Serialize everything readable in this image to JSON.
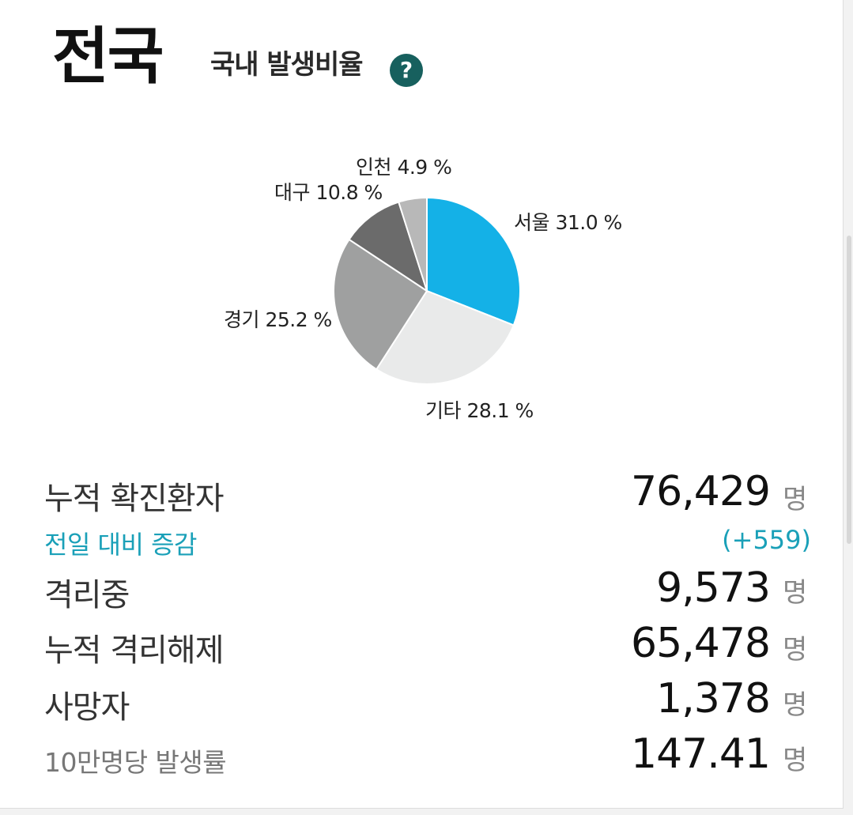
{
  "header": {
    "region": "전국",
    "subtitle": "국내 발생비율",
    "help_icon_glyph": "?"
  },
  "colors": {
    "accent_teal": "#1aa0b8",
    "help_icon_bg": "#17605e"
  },
  "chart_data": {
    "type": "pie",
    "slices": [
      {
        "name": "서울",
        "value": 31.0,
        "label": "서울 31.0 %",
        "color": "#14b1e7"
      },
      {
        "name": "기타",
        "value": 28.1,
        "label": "기타 28.1 %",
        "color": "#e9eaea"
      },
      {
        "name": "경기",
        "value": 25.2,
        "label": "경기 25.2 %",
        "color": "#9fa0a0"
      },
      {
        "name": "대구",
        "value": 10.8,
        "label": "대구 10.8 %",
        "color": "#6b6b6b"
      },
      {
        "name": "인천",
        "value": 4.9,
        "label": "인천 4.9 %",
        "color": "#b8b8b8"
      }
    ]
  },
  "stats": {
    "confirmed": {
      "label": "누적 확진환자",
      "value": "76,429",
      "unit": "명"
    },
    "delta": {
      "label": "전일 대비 증감",
      "value": "(+559)"
    },
    "isolated": {
      "label": "격리중",
      "value": "9,573",
      "unit": "명"
    },
    "released": {
      "label": "누적 격리해제",
      "value": "65,478",
      "unit": "명"
    },
    "deaths": {
      "label": "사망자",
      "value": "1,378",
      "unit": "명"
    },
    "rate": {
      "label": "10만명당 발생률",
      "value": "147.41",
      "unit": "명"
    }
  }
}
